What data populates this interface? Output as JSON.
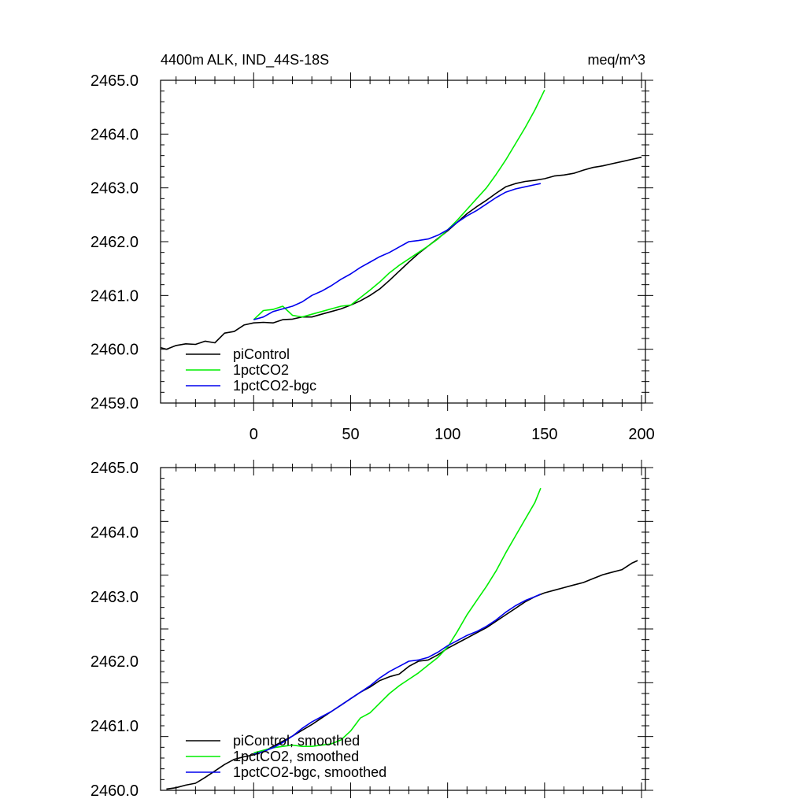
{
  "chart_data": [
    {
      "type": "line",
      "title_left": "4400m ALK, IND_44S-18S",
      "title_right": "meq/m^3",
      "xlim": [
        -48,
        202
      ],
      "ylim": [
        2459.0,
        2465.0
      ],
      "x_ticks": [
        0,
        50,
        100,
        150,
        200
      ],
      "x_tick_labels": [
        "0",
        "50",
        "100",
        "150",
        "200"
      ],
      "y_ticks": [
        2459.0,
        2460.0,
        2461.0,
        2462.0,
        2463.0,
        2464.0,
        2465.0
      ],
      "y_tick_labels": [
        "2459.0",
        "2460.0",
        "2461.0",
        "2462.0",
        "2463.0",
        "2464.0",
        "2465.0"
      ],
      "show_x_tick_labels": true,
      "grid": false,
      "legend_position": "bottom-left",
      "series": [
        {
          "name": "piControl",
          "color": "#000000",
          "points": [
            [
              -48,
              2460.03
            ],
            [
              -45,
              2460.0
            ],
            [
              -40,
              2460.07
            ],
            [
              -35,
              2460.1
            ],
            [
              -30,
              2460.09
            ],
            [
              -25,
              2460.15
            ],
            [
              -20,
              2460.12
            ],
            [
              -15,
              2460.3
            ],
            [
              -10,
              2460.33
            ],
            [
              -5,
              2460.45
            ],
            [
              0,
              2460.49
            ],
            [
              5,
              2460.5
            ],
            [
              10,
              2460.49
            ],
            [
              15,
              2460.55
            ],
            [
              20,
              2460.56
            ],
            [
              25,
              2460.6
            ],
            [
              30,
              2460.6
            ],
            [
              35,
              2460.65
            ],
            [
              40,
              2460.7
            ],
            [
              45,
              2460.75
            ],
            [
              50,
              2460.82
            ],
            [
              55,
              2460.9
            ],
            [
              60,
              2461.0
            ],
            [
              65,
              2461.12
            ],
            [
              70,
              2461.28
            ],
            [
              75,
              2461.45
            ],
            [
              80,
              2461.62
            ],
            [
              85,
              2461.78
            ],
            [
              90,
              2461.92
            ],
            [
              95,
              2462.06
            ],
            [
              100,
              2462.2
            ],
            [
              105,
              2462.36
            ],
            [
              110,
              2462.52
            ],
            [
              115,
              2462.65
            ],
            [
              120,
              2462.77
            ],
            [
              125,
              2462.9
            ],
            [
              130,
              2463.02
            ],
            [
              135,
              2463.08
            ],
            [
              140,
              2463.12
            ],
            [
              145,
              2463.14
            ],
            [
              150,
              2463.17
            ],
            [
              155,
              2463.22
            ],
            [
              160,
              2463.24
            ],
            [
              165,
              2463.27
            ],
            [
              170,
              2463.33
            ],
            [
              175,
              2463.38
            ],
            [
              180,
              2463.41
            ],
            [
              185,
              2463.45
            ],
            [
              190,
              2463.49
            ],
            [
              195,
              2463.53
            ],
            [
              200,
              2463.57
            ]
          ]
        },
        {
          "name": "1pctCO2",
          "color": "#00ee00",
          "points": [
            [
              0,
              2460.55
            ],
            [
              5,
              2460.72
            ],
            [
              10,
              2460.74
            ],
            [
              15,
              2460.8
            ],
            [
              20,
              2460.63
            ],
            [
              25,
              2460.6
            ],
            [
              30,
              2460.65
            ],
            [
              35,
              2460.7
            ],
            [
              40,
              2460.75
            ],
            [
              45,
              2460.8
            ],
            [
              50,
              2460.82
            ],
            [
              55,
              2460.96
            ],
            [
              60,
              2461.1
            ],
            [
              65,
              2461.25
            ],
            [
              70,
              2461.42
            ],
            [
              75,
              2461.56
            ],
            [
              80,
              2461.68
            ],
            [
              85,
              2461.8
            ],
            [
              90,
              2461.92
            ],
            [
              95,
              2462.05
            ],
            [
              100,
              2462.22
            ],
            [
              105,
              2462.4
            ],
            [
              110,
              2462.6
            ],
            [
              115,
              2462.8
            ],
            [
              120,
              2463.0
            ],
            [
              125,
              2463.25
            ],
            [
              130,
              2463.52
            ],
            [
              135,
              2463.82
            ],
            [
              140,
              2464.12
            ],
            [
              145,
              2464.45
            ],
            [
              150,
              2464.82
            ]
          ]
        },
        {
          "name": "1pctCO2-bgc",
          "color": "#0000ee",
          "points": [
            [
              0,
              2460.55
            ],
            [
              5,
              2460.6
            ],
            [
              10,
              2460.7
            ],
            [
              15,
              2460.75
            ],
            [
              20,
              2460.8
            ],
            [
              25,
              2460.88
            ],
            [
              30,
              2461.0
            ],
            [
              35,
              2461.08
            ],
            [
              40,
              2461.18
            ],
            [
              45,
              2461.3
            ],
            [
              50,
              2461.4
            ],
            [
              55,
              2461.52
            ],
            [
              60,
              2461.62
            ],
            [
              65,
              2461.72
            ],
            [
              70,
              2461.8
            ],
            [
              75,
              2461.9
            ],
            [
              80,
              2462.0
            ],
            [
              85,
              2462.02
            ],
            [
              90,
              2462.05
            ],
            [
              95,
              2462.12
            ],
            [
              100,
              2462.22
            ],
            [
              105,
              2462.36
            ],
            [
              110,
              2462.48
            ],
            [
              115,
              2462.58
            ],
            [
              120,
              2462.7
            ],
            [
              125,
              2462.82
            ],
            [
              130,
              2462.92
            ],
            [
              135,
              2462.98
            ],
            [
              140,
              2463.02
            ],
            [
              145,
              2463.06
            ],
            [
              148,
              2463.08
            ]
          ]
        }
      ]
    },
    {
      "type": "line",
      "xlim": [
        -48,
        202
      ],
      "ylim": [
        2460.0,
        2465.0
      ],
      "x_ticks": [
        0,
        50,
        100,
        150,
        200
      ],
      "y_ticks": [
        2460.0,
        2461.0,
        2462.0,
        2463.0,
        2464.0,
        2465.0
      ],
      "y_tick_labels": [
        "2460.0",
        "2461.0",
        "2462.0",
        "2463.0",
        "2464.0",
        "2465.0"
      ],
      "show_x_tick_labels": false,
      "grid": false,
      "legend_position": "bottom-left",
      "series": [
        {
          "name": "piControl, smoothed",
          "color": "#000000",
          "points": [
            [
              -45,
              2460.02
            ],
            [
              -40,
              2460.04
            ],
            [
              -35,
              2460.08
            ],
            [
              -30,
              2460.11
            ],
            [
              -25,
              2460.2
            ],
            [
              -20,
              2460.3
            ],
            [
              -15,
              2460.4
            ],
            [
              -10,
              2460.48
            ],
            [
              -5,
              2460.52
            ],
            [
              0,
              2460.55
            ],
            [
              5,
              2460.6
            ],
            [
              10,
              2460.68
            ],
            [
              15,
              2460.76
            ],
            [
              20,
              2460.84
            ],
            [
              25,
              2460.93
            ],
            [
              30,
              2461.02
            ],
            [
              35,
              2461.12
            ],
            [
              40,
              2461.22
            ],
            [
              45,
              2461.32
            ],
            [
              50,
              2461.42
            ],
            [
              55,
              2461.52
            ],
            [
              60,
              2461.6
            ],
            [
              65,
              2461.7
            ],
            [
              70,
              2461.76
            ],
            [
              75,
              2461.8
            ],
            [
              80,
              2461.92
            ],
            [
              85,
              2462.0
            ],
            [
              90,
              2462.02
            ],
            [
              95,
              2462.1
            ],
            [
              100,
              2462.2
            ],
            [
              105,
              2462.28
            ],
            [
              110,
              2462.36
            ],
            [
              115,
              2462.44
            ],
            [
              120,
              2462.52
            ],
            [
              125,
              2462.62
            ],
            [
              130,
              2462.72
            ],
            [
              135,
              2462.82
            ],
            [
              140,
              2462.92
            ],
            [
              145,
              2463.0
            ],
            [
              150,
              2463.06
            ],
            [
              155,
              2463.1
            ],
            [
              160,
              2463.14
            ],
            [
              165,
              2463.18
            ],
            [
              170,
              2463.22
            ],
            [
              175,
              2463.28
            ],
            [
              180,
              2463.34
            ],
            [
              185,
              2463.38
            ],
            [
              190,
              2463.42
            ],
            [
              195,
              2463.52
            ],
            [
              198,
              2463.56
            ]
          ]
        },
        {
          "name": "1pctCO2, smoothed",
          "color": "#00ee00",
          "points": [
            [
              0,
              2460.58
            ],
            [
              5,
              2460.62
            ],
            [
              10,
              2460.66
            ],
            [
              15,
              2460.68
            ],
            [
              20,
              2460.7
            ],
            [
              25,
              2460.68
            ],
            [
              30,
              2460.68
            ],
            [
              35,
              2460.7
            ],
            [
              40,
              2460.72
            ],
            [
              45,
              2460.78
            ],
            [
              50,
              2460.92
            ],
            [
              55,
              2461.12
            ],
            [
              60,
              2461.2
            ],
            [
              65,
              2461.35
            ],
            [
              70,
              2461.5
            ],
            [
              75,
              2461.62
            ],
            [
              80,
              2461.72
            ],
            [
              85,
              2461.82
            ],
            [
              90,
              2461.94
            ],
            [
              95,
              2462.06
            ],
            [
              100,
              2462.22
            ],
            [
              105,
              2462.46
            ],
            [
              110,
              2462.72
            ],
            [
              115,
              2462.94
            ],
            [
              120,
              2463.16
            ],
            [
              125,
              2463.4
            ],
            [
              130,
              2463.68
            ],
            [
              135,
              2463.94
            ],
            [
              140,
              2464.2
            ],
            [
              145,
              2464.46
            ],
            [
              148,
              2464.68
            ]
          ]
        },
        {
          "name": "1pctCO2-bgc, smoothed",
          "color": "#0000ee",
          "points": [
            [
              0,
              2460.56
            ],
            [
              5,
              2460.6
            ],
            [
              10,
              2460.66
            ],
            [
              15,
              2460.74
            ],
            [
              20,
              2460.84
            ],
            [
              25,
              2460.96
            ],
            [
              30,
              2461.06
            ],
            [
              35,
              2461.14
            ],
            [
              40,
              2461.22
            ],
            [
              45,
              2461.32
            ],
            [
              50,
              2461.42
            ],
            [
              55,
              2461.52
            ],
            [
              60,
              2461.62
            ],
            [
              65,
              2461.74
            ],
            [
              70,
              2461.84
            ],
            [
              75,
              2461.92
            ],
            [
              80,
              2462.0
            ],
            [
              85,
              2462.02
            ],
            [
              90,
              2462.06
            ],
            [
              95,
              2462.14
            ],
            [
              100,
              2462.24
            ],
            [
              105,
              2462.32
            ],
            [
              110,
              2462.4
            ],
            [
              115,
              2462.46
            ],
            [
              120,
              2462.54
            ],
            [
              125,
              2462.64
            ],
            [
              130,
              2462.76
            ],
            [
              135,
              2462.86
            ],
            [
              140,
              2462.94
            ],
            [
              145,
              2463.0
            ],
            [
              148,
              2463.04
            ]
          ]
        }
      ]
    }
  ]
}
